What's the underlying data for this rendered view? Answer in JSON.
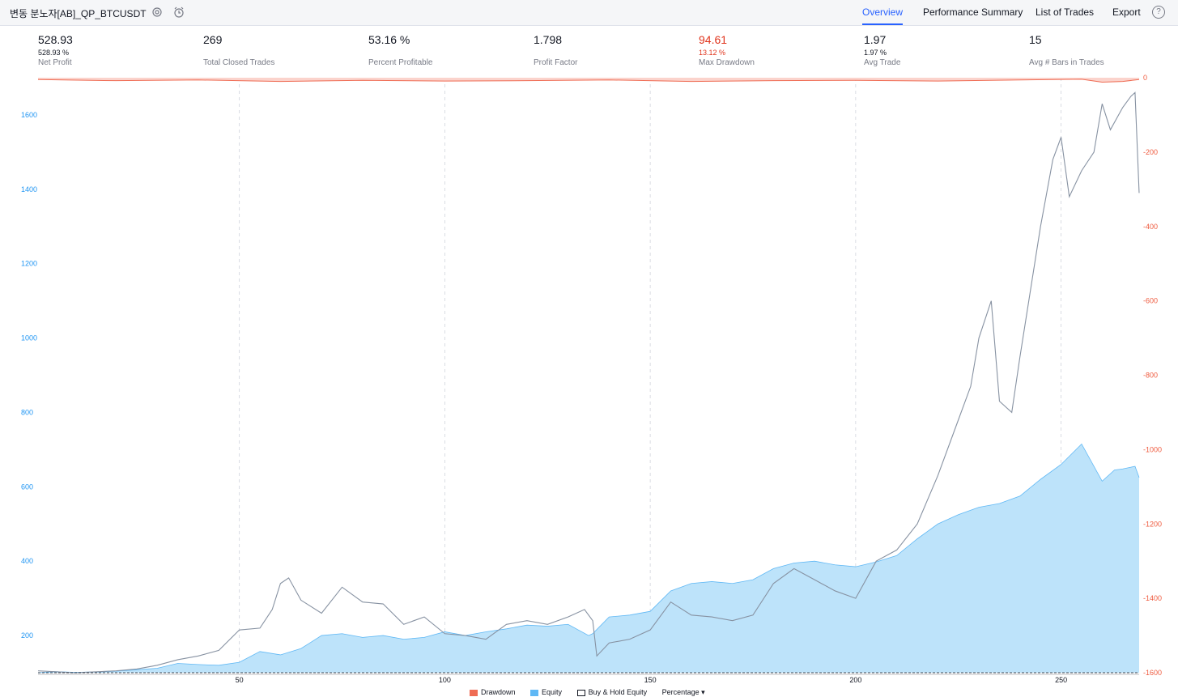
{
  "header": {
    "strategy_name": "변동 분노자[AB]_QP_BTCUSDT",
    "icons": [
      "settings-icon",
      "alarm-clock-icon"
    ]
  },
  "tabs": [
    {
      "label": "Overview",
      "active": true
    },
    {
      "label": "Performance Summary",
      "active": false
    },
    {
      "label": "List of Trades",
      "active": false
    },
    {
      "label": "Export",
      "active": false
    }
  ],
  "stats": [
    {
      "value": "528.93",
      "sub": "528.93 %",
      "label": "Net Profit"
    },
    {
      "value": "269",
      "sub": "",
      "label": "Total Closed Trades"
    },
    {
      "value": "53.16 %",
      "sub": "",
      "label": "Percent Profitable"
    },
    {
      "value": "1.798",
      "sub": "",
      "label": "Profit Factor"
    },
    {
      "value": "94.61",
      "sub": "13.12 %",
      "label": "Max Drawdown"
    },
    {
      "value": "1.97",
      "sub": "1.97 %",
      "label": "Avg Trade"
    },
    {
      "value": "15",
      "sub": "",
      "label": "Avg # Bars in Trades"
    }
  ],
  "colors": {
    "accent": "#2962ff",
    "equity_fill": "#bde3fa",
    "equity_line": "#5fb8f5",
    "drawdown": "#ef6c54",
    "buy_hold": "#8792a2",
    "left_axis_text": "#2196f3",
    "right_axis_text": "#ef5b3f"
  },
  "legend": {
    "drawdown": "Drawdown",
    "equity": "Equity",
    "buy_hold": "Buy & Hold Equity",
    "mode": "Percentage ▾"
  },
  "chart_data": {
    "type": "area",
    "x_ticks": [
      "50",
      "100",
      "150",
      "200",
      "250"
    ],
    "x_range": [
      1,
      269
    ],
    "left_axis": {
      "ticks": [
        "200",
        "400",
        "600",
        "800",
        "1000",
        "1200",
        "1400",
        "1600"
      ],
      "range": [
        100,
        1700
      ]
    },
    "right_axis": {
      "ticks": [
        "0",
        "-200",
        "-400",
        "-600",
        "-800",
        "-1000",
        "-1200",
        "-1400",
        "-1600"
      ],
      "range": [
        -1600,
        0
      ]
    },
    "series": [
      {
        "name": "Equity",
        "x": [
          1,
          5,
          10,
          15,
          20,
          25,
          30,
          35,
          40,
          45,
          50,
          55,
          60,
          65,
          70,
          75,
          80,
          85,
          90,
          95,
          100,
          105,
          110,
          115,
          120,
          125,
          130,
          135,
          136,
          140,
          145,
          150,
          155,
          160,
          165,
          170,
          175,
          180,
          185,
          190,
          195,
          200,
          205,
          210,
          215,
          220,
          225,
          230,
          235,
          240,
          245,
          250,
          255,
          260,
          263,
          265,
          268,
          269
        ],
        "values": [
          100,
          103,
          101,
          102,
          104,
          108,
          112,
          125,
          122,
          120,
          128,
          157,
          148,
          165,
          200,
          205,
          195,
          200,
          190,
          195,
          210,
          200,
          210,
          218,
          228,
          225,
          230,
          200,
          205,
          250,
          255,
          265,
          320,
          340,
          345,
          340,
          350,
          380,
          395,
          400,
          390,
          385,
          398,
          415,
          460,
          500,
          525,
          545,
          555,
          575,
          620,
          660,
          715,
          615,
          645,
          648,
          655,
          625
        ]
      },
      {
        "name": "Buy & Hold Equity",
        "x": [
          1,
          10,
          20,
          25,
          30,
          35,
          40,
          45,
          50,
          55,
          58,
          60,
          62,
          65,
          70,
          75,
          80,
          85,
          90,
          95,
          100,
          105,
          110,
          115,
          120,
          125,
          130,
          134,
          136,
          137,
          140,
          145,
          150,
          155,
          160,
          165,
          170,
          175,
          180,
          185,
          190,
          195,
          200,
          205,
          210,
          215,
          220,
          225,
          228,
          230,
          233,
          235,
          238,
          240,
          245,
          248,
          250,
          252,
          255,
          258,
          260,
          262,
          265,
          267,
          268,
          269
        ],
        "values": [
          105,
          100,
          105,
          110,
          120,
          135,
          145,
          160,
          215,
          220,
          270,
          340,
          355,
          295,
          260,
          330,
          290,
          285,
          230,
          250,
          205,
          200,
          190,
          230,
          240,
          230,
          250,
          270,
          240,
          145,
          180,
          190,
          215,
          290,
          255,
          250,
          240,
          255,
          340,
          380,
          350,
          320,
          300,
          400,
          430,
          500,
          630,
          780,
          870,
          1000,
          1100,
          830,
          800,
          950,
          1300,
          1480,
          1540,
          1380,
          1450,
          1500,
          1630,
          1560,
          1620,
          1650,
          1660,
          1390
        ]
      },
      {
        "name": "Drawdown",
        "x": [
          1,
          20,
          40,
          60,
          80,
          100,
          120,
          140,
          160,
          180,
          200,
          220,
          240,
          255,
          260,
          265,
          269
        ],
        "values": [
          -5,
          -8,
          -6,
          -10,
          -7,
          -9,
          -8,
          -6,
          -10,
          -8,
          -7,
          -9,
          -6,
          -4,
          -12,
          -10,
          -5
        ]
      }
    ]
  }
}
